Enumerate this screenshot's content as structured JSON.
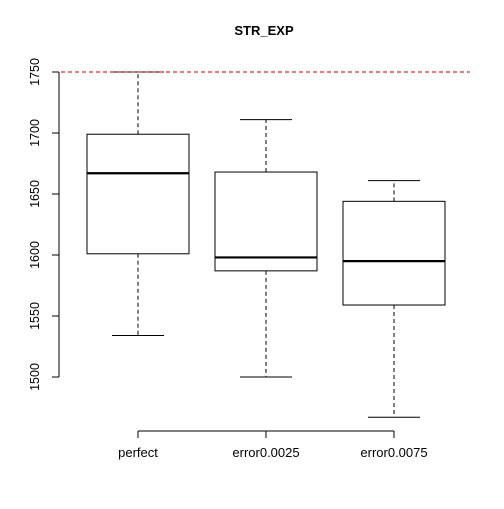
{
  "chart_data": {
    "type": "boxplot",
    "title": "STR_EXP",
    "xlabel": "",
    "ylabel": "",
    "ylim": [
      1457,
      1752
    ],
    "yticks": [
      1500,
      1550,
      1600,
      1650,
      1700,
      1750
    ],
    "categories": [
      "perfect",
      "error0.0025",
      "error0.0075"
    ],
    "boxes": [
      {
        "name": "perfect",
        "whisker_low": 1534,
        "q1": 1601,
        "median": 1667,
        "q3": 1699,
        "whisker_high": 1750
      },
      {
        "name": "error0.0025",
        "whisker_low": 1500,
        "q1": 1587,
        "median": 1598,
        "q3": 1668,
        "whisker_high": 1711
      },
      {
        "name": "error0.0075",
        "whisker_low": 1467,
        "q1": 1559,
        "median": 1595,
        "q3": 1644,
        "whisker_high": 1661
      }
    ],
    "reference_line": {
      "y": 1750,
      "color": "#cc0000",
      "style": "dashed"
    },
    "grid": false,
    "legend": "none"
  }
}
